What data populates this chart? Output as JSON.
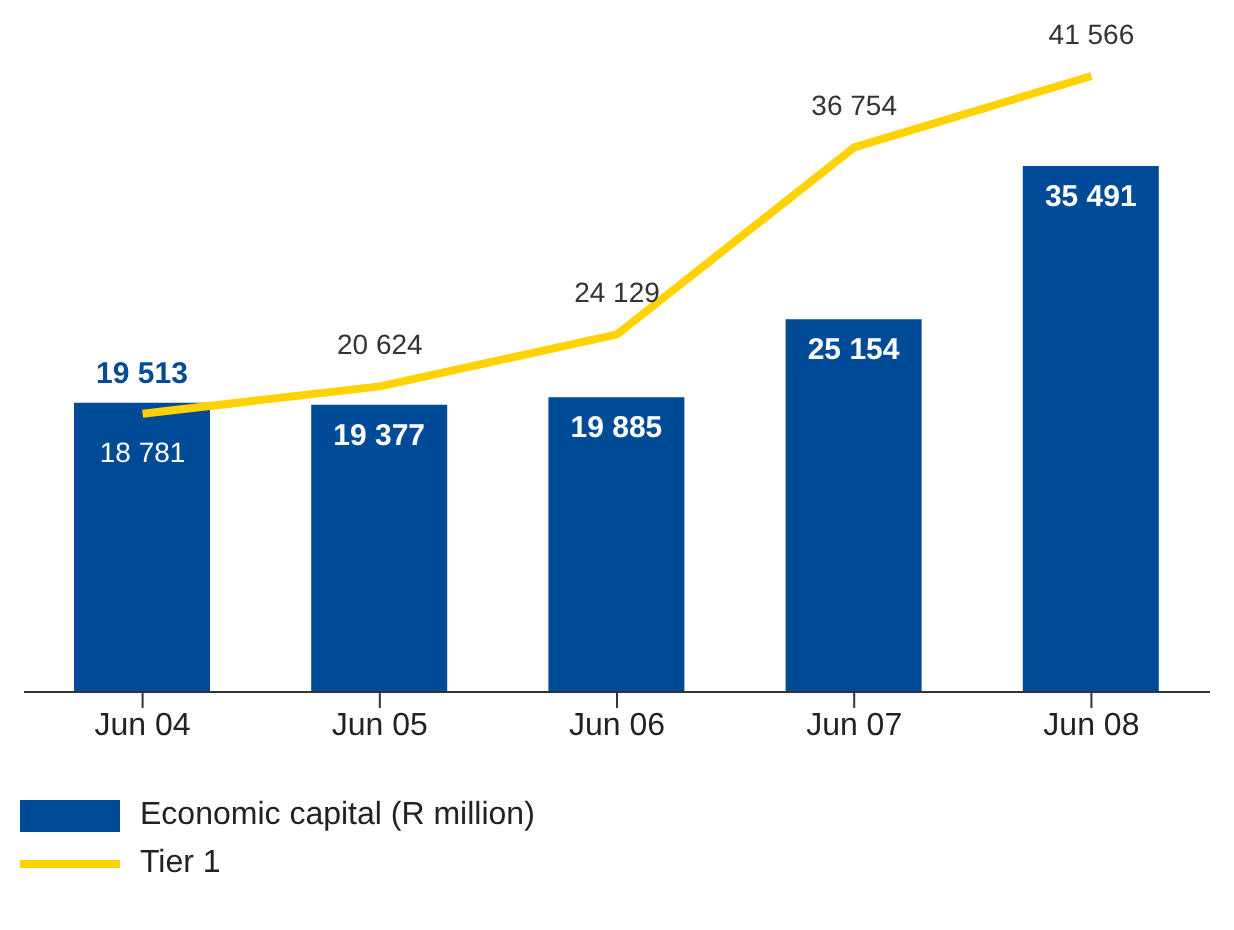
{
  "chart_data": {
    "type": "bar",
    "categories": [
      "Jun 04",
      "Jun 05",
      "Jun 06",
      "Jun 07",
      "Jun 08"
    ],
    "series": [
      {
        "name": "Economic capital (R million)",
        "color": "#004b97",
        "values": [
          19513,
          19377,
          19885,
          25154,
          35491
        ],
        "value_labels": [
          "19 513",
          "19 377",
          "19 885",
          "25 154",
          "35 491"
        ]
      },
      {
        "name": "Tier 1",
        "type": "line",
        "color": "#ffd200",
        "values": [
          18781,
          20624,
          24129,
          36754,
          41566
        ],
        "value_labels": [
          "18 781",
          "20 624",
          "24 129",
          "36 754",
          "41 566"
        ]
      }
    ],
    "grid": false,
    "legend": "bottom left"
  }
}
